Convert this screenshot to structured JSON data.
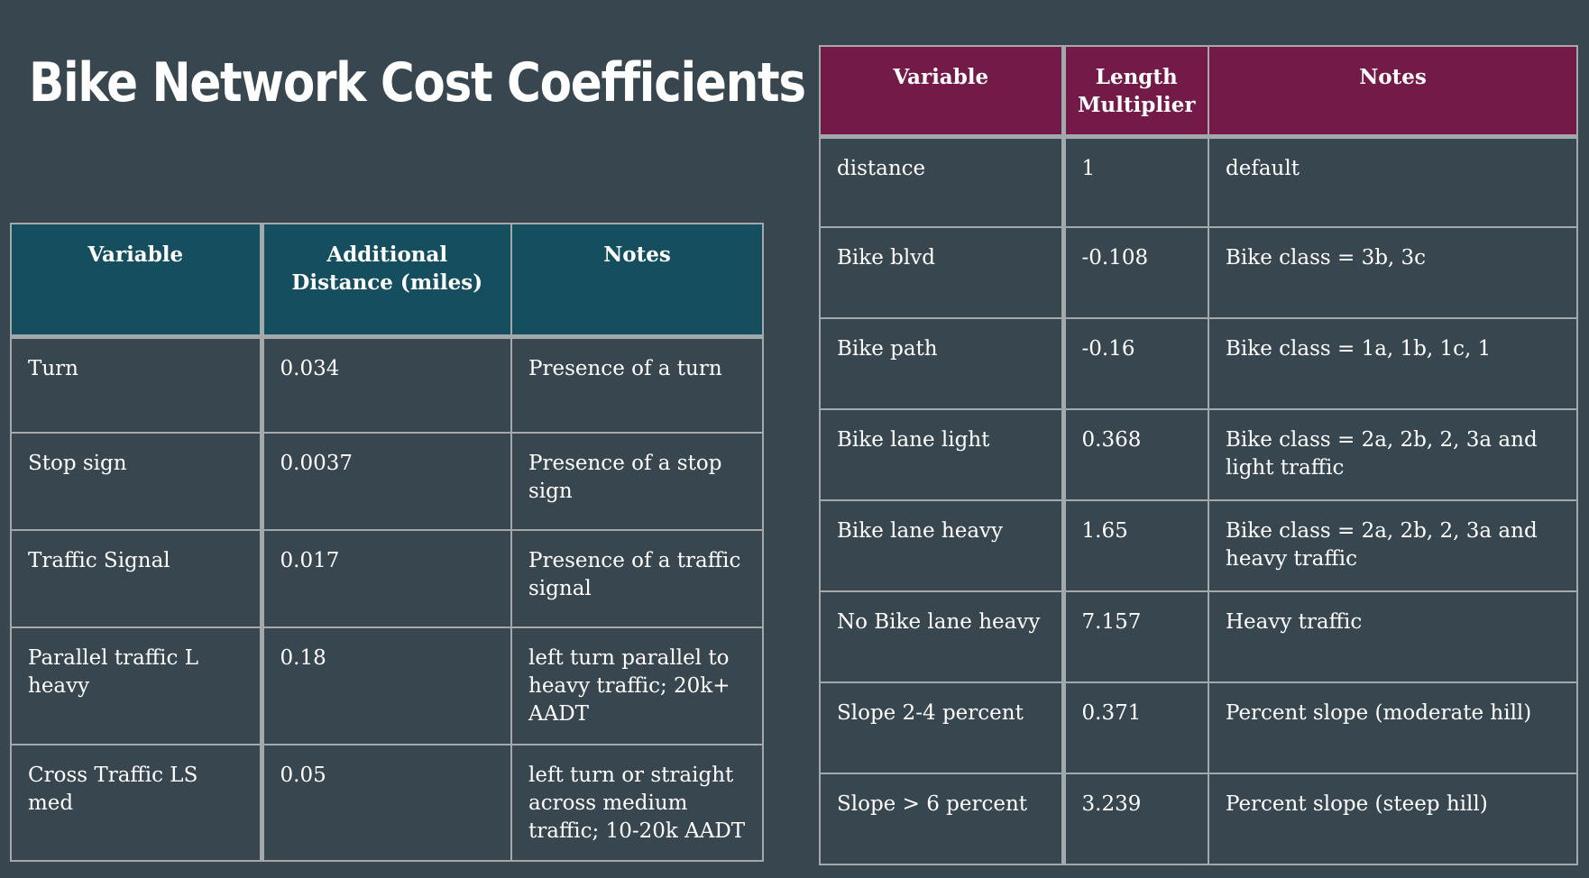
{
  "title": "Bike Network Cost Coefficients",
  "colors": {
    "background": "#37464f",
    "left_header": "#154e5e",
    "right_header": "#741a49",
    "grid": "#a3a8ab"
  },
  "left_table": {
    "headers": [
      "Variable",
      "Additional Distance (miles)",
      "Notes"
    ],
    "rows": [
      {
        "variable": "Turn",
        "value": "0.034",
        "notes": "Presence of a turn"
      },
      {
        "variable": "Stop sign",
        "value": "0.0037",
        "notes": "Presence of a stop sign"
      },
      {
        "variable": "Traffic Signal",
        "value": "0.017",
        "notes": "Presence of a traffic signal"
      },
      {
        "variable": "Parallel traffic L heavy",
        "value": "0.18",
        "notes": "left turn parallel to heavy traffic; 20k+ AADT"
      },
      {
        "variable": "Cross Traffic LS med",
        "value": "0.05",
        "notes": "left turn or straight across medium traffic; 10-20k AADT"
      }
    ]
  },
  "right_table": {
    "headers": [
      "Variable",
      "Length Multiplier",
      "Notes"
    ],
    "rows": [
      {
        "variable": "distance",
        "value": "1",
        "notes": "default"
      },
      {
        "variable": "Bike blvd",
        "value": "-0.108",
        "notes": "Bike class = 3b, 3c"
      },
      {
        "variable": "Bike path",
        "value": "-0.16",
        "notes": "Bike class = 1a, 1b, 1c, 1"
      },
      {
        "variable": "Bike lane light",
        "value": "0.368",
        "notes": "Bike class = 2a, 2b, 2, 3a and light traffic"
      },
      {
        "variable": "Bike lane heavy",
        "value": "1.65",
        "notes": "Bike class = 2a, 2b, 2, 3a and heavy traffic"
      },
      {
        "variable": "No Bike lane heavy",
        "value": "7.157",
        "notes": "Heavy traffic"
      },
      {
        "variable": "Slope 2-4 percent",
        "value": "0.371",
        "notes": "Percent slope (moderate hill)"
      },
      {
        "variable": "Slope > 6 percent",
        "value": "3.239",
        "notes": "Percent slope (steep hill)"
      }
    ]
  }
}
